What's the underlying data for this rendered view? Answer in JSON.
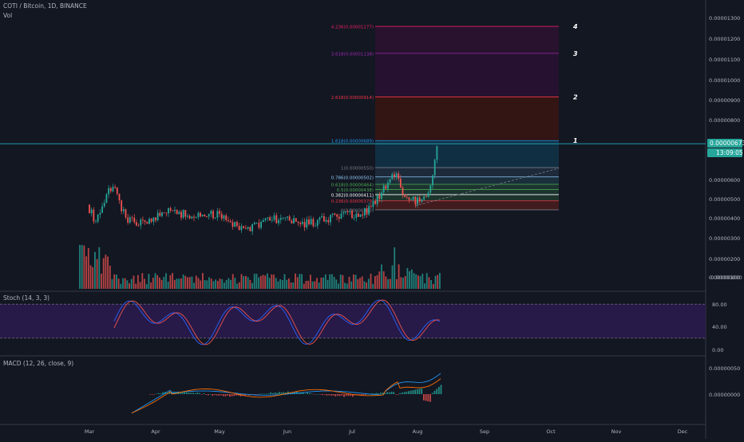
{
  "header": {
    "symbol": "COTI / Bitcoin, 1D, BINANCE",
    "vol_label": "Vol",
    "stoch_label": "Stoch (14, 3, 3)",
    "macd_label": "MACD (12, 26, close, 9)"
  },
  "price_badge": {
    "value": "0.00000673",
    "countdown": "13:09:05"
  },
  "colors": {
    "background": "#131722",
    "up": "#26a69a",
    "down": "#ef5350",
    "stoch_k": "#2962ff",
    "stoch_d": "#ef5350",
    "stoch_band": "#2a1b4d",
    "macd_line": "#2196f3",
    "signal_line": "#ff6d00",
    "price_line": "#26c6da"
  },
  "chart_data": [
    {
      "type": "candlestick",
      "name": "price",
      "x_axis_labels": [
        "Mar",
        "Apr",
        "May",
        "Jun",
        "Jul",
        "Aug",
        "Sep",
        "Oct",
        "Nov",
        "Dec"
      ],
      "y_axis_labels": [
        "0.00001300",
        "0.00001200",
        "0.00001100",
        "0.00001000",
        "0.00000900",
        "0.00000800",
        "0.00000600",
        "0.00000500",
        "0.00000400",
        "0.00000300",
        "0.00000200",
        "0.00000100",
        "-0.00000000"
      ],
      "ylim": [
        -5e-08,
        1.34e-05
      ],
      "current_price": 6.73e-06,
      "fib_levels": [
        {
          "ratio": "0",
          "price": "0.00000333",
          "value": 3.33e-06,
          "color": "#787b86"
        },
        {
          "ratio": "0.236",
          "price": "0.00000379",
          "value": 3.79e-06,
          "color": "#f23645"
        },
        {
          "ratio": "0.382",
          "price": "0.00000411",
          "value": 4.11e-06,
          "color": "#ffffff"
        },
        {
          "ratio": "0.5",
          "price": "0.00000438",
          "value": 4.38e-06,
          "color": "#4caf50"
        },
        {
          "ratio": "0.618",
          "price": "0.00000464",
          "value": 4.64e-06,
          "color": "#4caf50"
        },
        {
          "ratio": "0.786",
          "price": "0.00000502",
          "value": 5.02e-06,
          "color": "#90caf9"
        },
        {
          "ratio": "1",
          "price": "0.00000550",
          "value": 5.5e-06,
          "color": "#787b86"
        },
        {
          "ratio": "1.618",
          "price": "0.00000689",
          "value": 6.89e-06,
          "color": "#2196f3"
        },
        {
          "ratio": "2.618",
          "price": "0.00000914",
          "value": 9.14e-06,
          "color": "#f23645"
        },
        {
          "ratio": "3.618",
          "price": "0.00001138",
          "value": 1.138e-05,
          "color": "#9c27b0"
        },
        {
          "ratio": "4.236",
          "price": "0.00001277",
          "value": 1.277e-05,
          "color": "#e91e63"
        }
      ],
      "targets": [
        "1",
        "2",
        "3",
        "4"
      ],
      "approx_close_path": [
        {
          "x": "Mar 1",
          "y": 3.6e-06
        },
        {
          "x": "Mar 5",
          "y": 2.7e-06
        },
        {
          "x": "Mar 10",
          "y": 4.1e-06
        },
        {
          "x": "Mar 13",
          "y": 4.7e-06
        },
        {
          "x": "Mar 16",
          "y": 3.7e-06
        },
        {
          "x": "Mar 20",
          "y": 2.8e-06
        },
        {
          "x": "Mar 25",
          "y": 2.6e-06
        },
        {
          "x": "Apr 1",
          "y": 2.9e-06
        },
        {
          "x": "Apr 8",
          "y": 3.3e-06
        },
        {
          "x": "Apr 15",
          "y": 3.1e-06
        },
        {
          "x": "Apr 22",
          "y": 3e-06
        },
        {
          "x": "May 1",
          "y": 3.1e-06
        },
        {
          "x": "May 8",
          "y": 2.6e-06
        },
        {
          "x": "May 12",
          "y": 2.3e-06
        },
        {
          "x": "May 18",
          "y": 2.5e-06
        },
        {
          "x": "May 25",
          "y": 2.9e-06
        },
        {
          "x": "Jun 1",
          "y": 2.8e-06
        },
        {
          "x": "Jun 8",
          "y": 2.6e-06
        },
        {
          "x": "Jun 15",
          "y": 2.7e-06
        },
        {
          "x": "Jun 22",
          "y": 2.9e-06
        },
        {
          "x": "Jul 1",
          "y": 3.1e-06
        },
        {
          "x": "Jul 8",
          "y": 3.2e-06
        },
        {
          "x": "Jul 12",
          "y": 3.6e-06
        },
        {
          "x": "Jul 16",
          "y": 4.2e-06
        },
        {
          "x": "Jul 20",
          "y": 4.9e-06
        },
        {
          "x": "Jul 23",
          "y": 5.2e-06
        },
        {
          "x": "Jul 27",
          "y": 4e-06
        },
        {
          "x": "Jul 31",
          "y": 3.8e-06
        },
        {
          "x": "Aug 4",
          "y": 3.8e-06
        },
        {
          "x": "Aug 7",
          "y": 4.4e-06
        },
        {
          "x": "Aug 9",
          "y": 5.2e-06
        },
        {
          "x": "Aug 10",
          "y": 5.9e-06
        },
        {
          "x": "Aug 11",
          "y": 6.7e-06
        }
      ]
    },
    {
      "type": "bar",
      "name": "volume"
    },
    {
      "type": "line",
      "name": "stochastic",
      "y_axis_labels": [
        "80.00",
        "40.00",
        "0.00"
      ],
      "ylim": [
        -5,
        100
      ],
      "bands": [
        20,
        80
      ]
    },
    {
      "type": "line",
      "name": "macd",
      "y_axis_labels": [
        "0.00000050",
        "0.00000000"
      ]
    }
  ]
}
